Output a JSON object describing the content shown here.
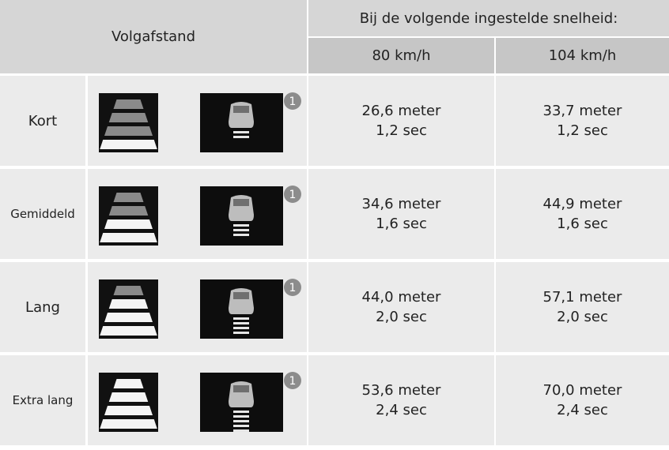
{
  "table": {
    "header": {
      "distance": "Volgafstand",
      "speed_title": "Bij de volgende ingestelde snelheid:",
      "speeds": [
        "80 km/h",
        "104 km/h"
      ]
    },
    "rows": [
      {
        "label": "Kort",
        "badge": "1",
        "cells": [
          {
            "distance": "26,6 meter",
            "time": "1,2 sec"
          },
          {
            "distance": "33,7 meter",
            "time": "1,2 sec"
          }
        ]
      },
      {
        "label": "Gemiddeld",
        "badge": "1",
        "cells": [
          {
            "distance": "34,6 meter",
            "time": "1,6 sec"
          },
          {
            "distance": "44,9 meter",
            "time": "1,6 sec"
          }
        ]
      },
      {
        "label": "Lang",
        "badge": "1",
        "cells": [
          {
            "distance": "44,0 meter",
            "time": "2,0 sec"
          },
          {
            "distance": "57,1 meter",
            "time": "2,0 sec"
          }
        ]
      },
      {
        "label": "Extra lang",
        "badge": "1",
        "cells": [
          {
            "distance": "53,6 meter",
            "time": "2,4 sec"
          },
          {
            "distance": "70,0 meter",
            "time": "2,4 sec"
          }
        ]
      }
    ]
  }
}
